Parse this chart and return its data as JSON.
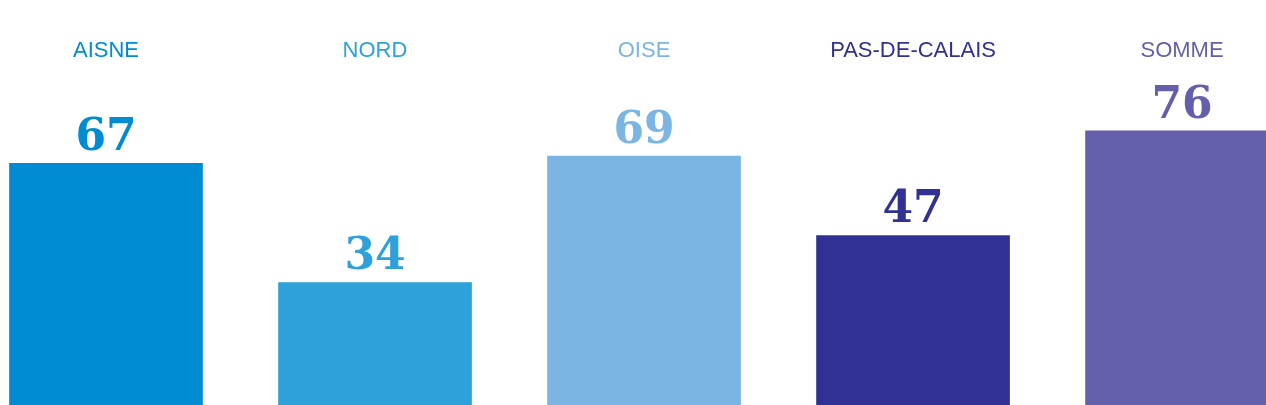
{
  "chart_data": {
    "type": "bar",
    "categories": [
      "AISNE",
      "NORD",
      "OISE",
      "PAS-DE-CALAIS",
      "SOMME"
    ],
    "values": [
      67,
      34,
      69,
      47,
      76
    ],
    "colors": [
      "#008bd2",
      "#2ea1da",
      "#7ab5e3",
      "#303193",
      "#645fab"
    ],
    "data_labels": true
  }
}
